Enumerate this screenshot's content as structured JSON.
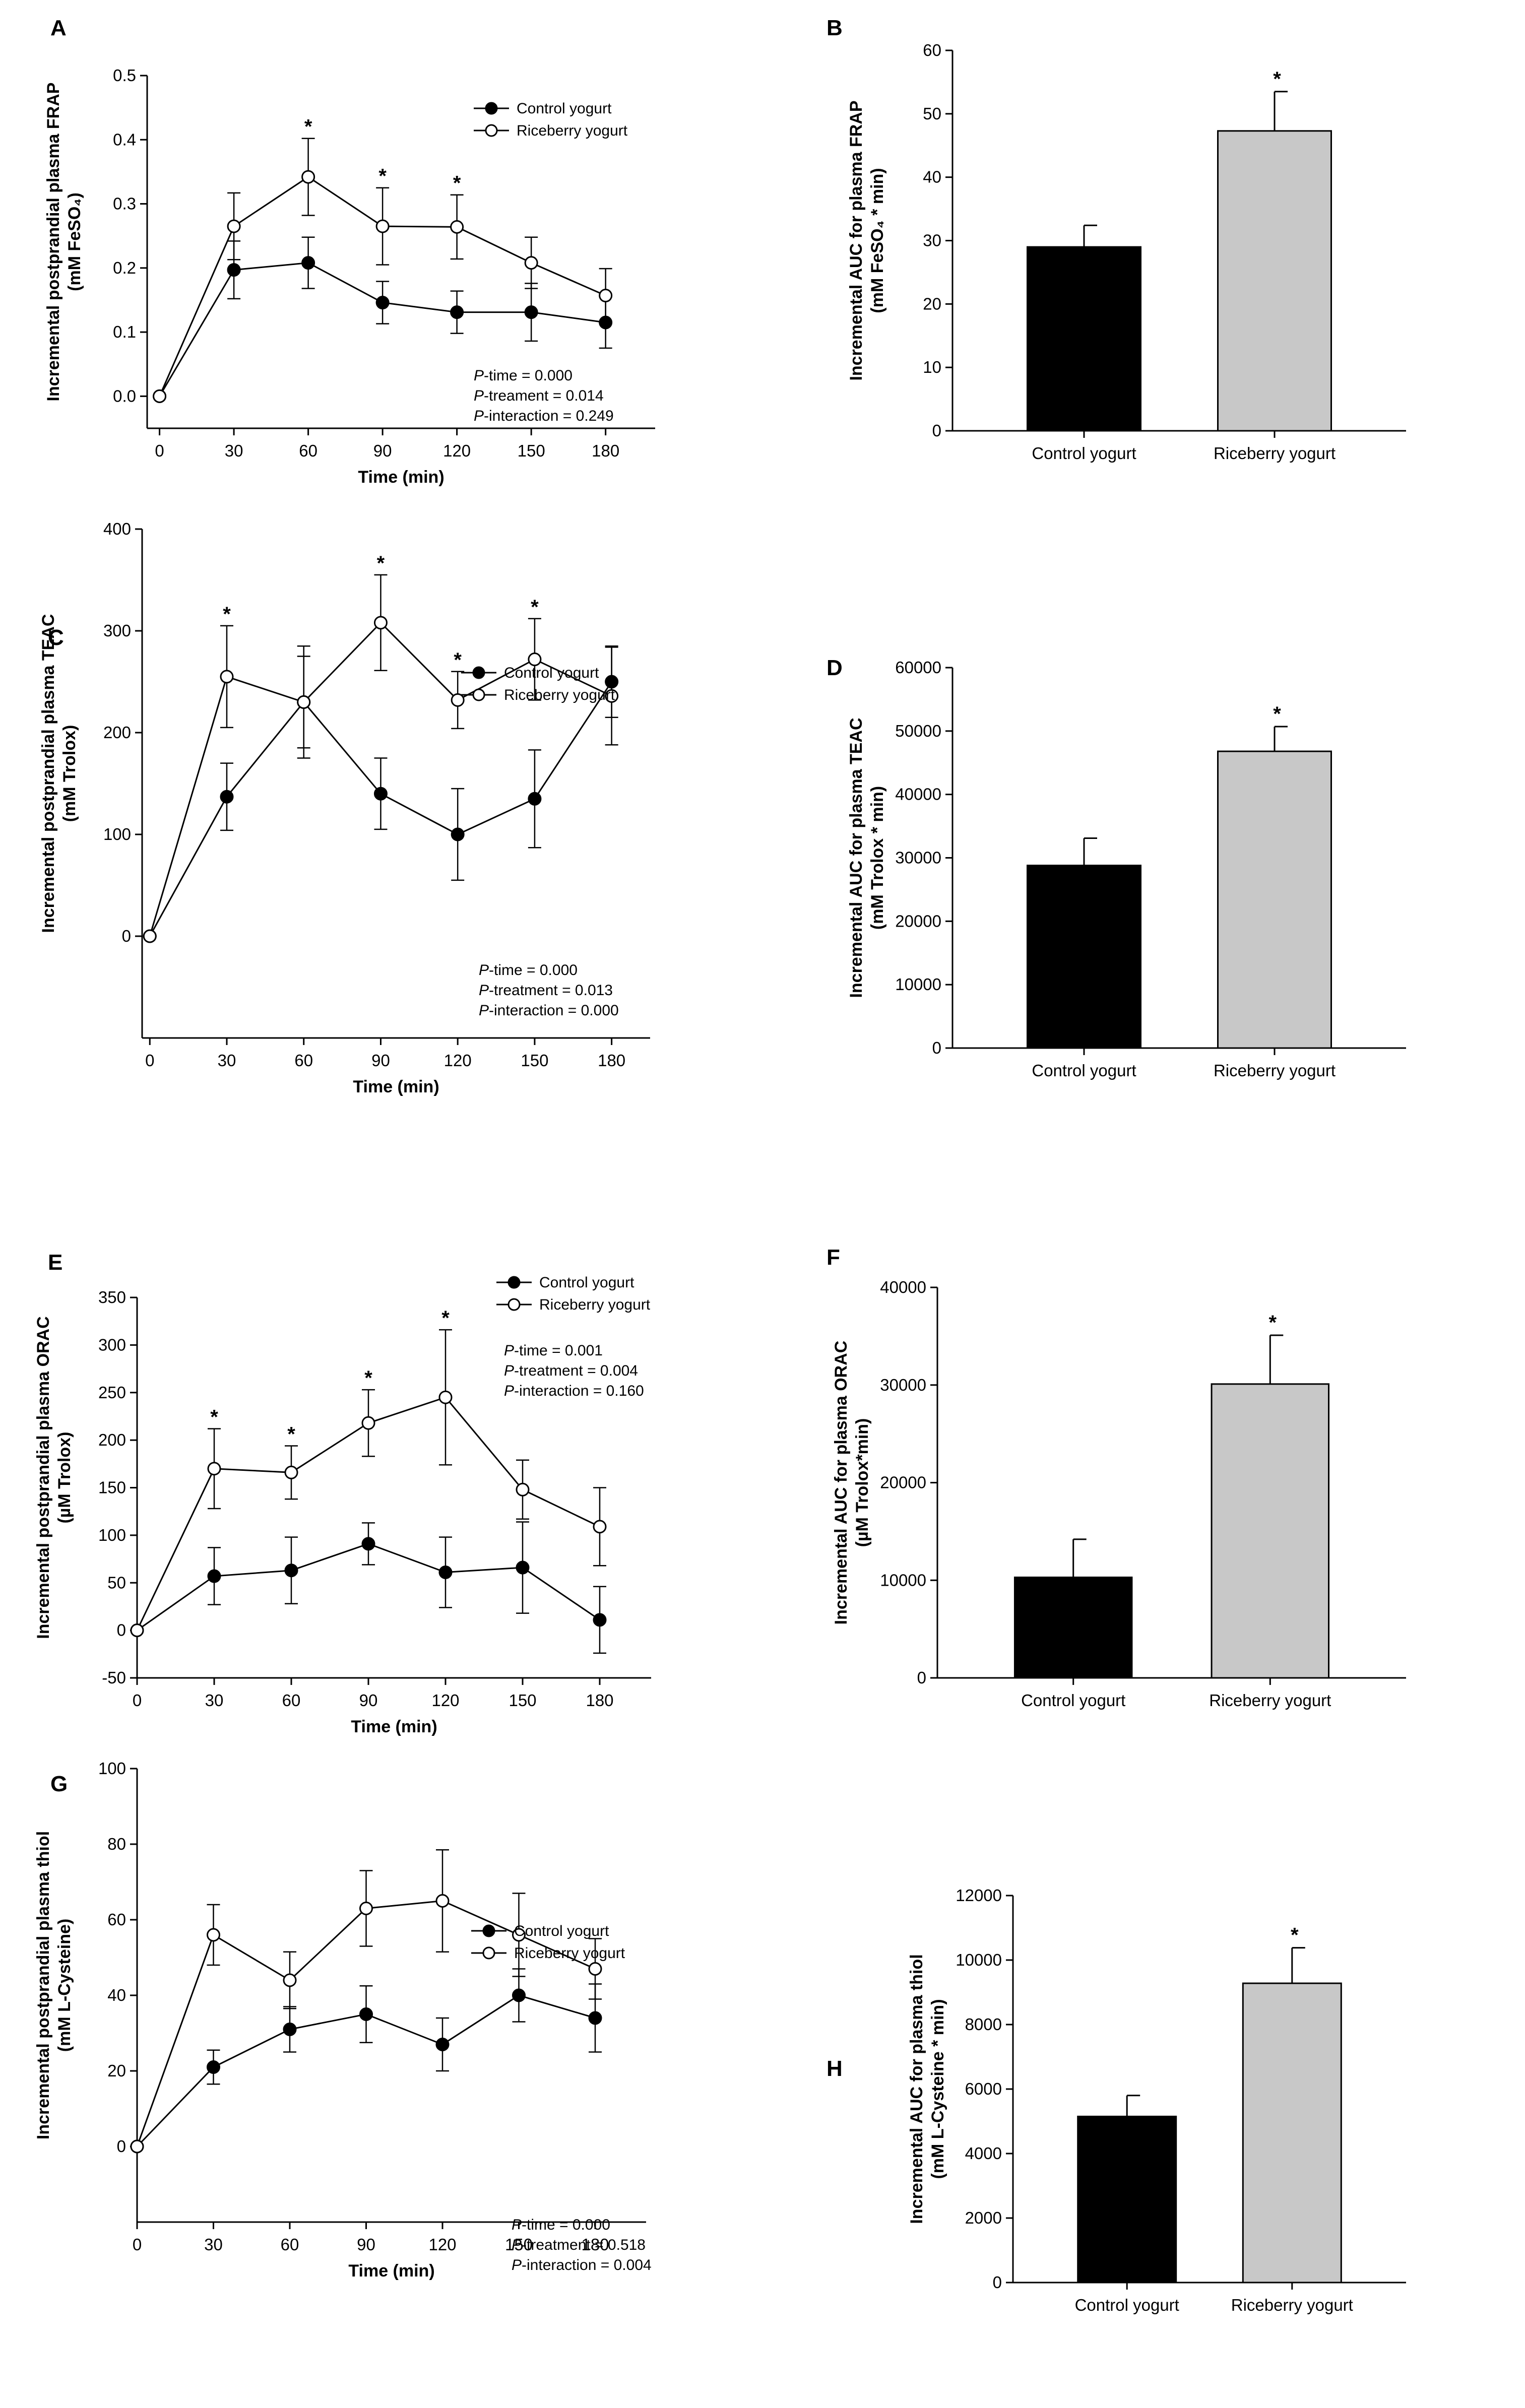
{
  "chart_data": [
    {
      "panel": "A",
      "type": "line",
      "xlabel": "Time (min)",
      "ylabel_lines": [
        "Incremental postprandial plasma FRAP",
        "(mM FeSO₄)"
      ],
      "x": [
        0,
        30,
        60,
        90,
        120,
        150,
        180
      ],
      "xticks": [
        0,
        30,
        60,
        90,
        120,
        150,
        180
      ],
      "xlim": [
        -5,
        200
      ],
      "ylim": [
        -0.05,
        0.5
      ],
      "yticks": [
        0.0,
        0.1,
        0.2,
        0.3,
        0.4,
        0.5
      ],
      "ytick_labels": [
        "0.0",
        "0.1",
        "0.2",
        "0.3",
        "0.4",
        "0.5"
      ],
      "series": [
        {
          "name": "Control yogurt",
          "marker": "filled",
          "values": [
            0,
            0.197,
            0.208,
            0.146,
            0.131,
            0.131,
            0.115
          ],
          "errors": [
            0,
            0.045,
            0.04,
            0.033,
            0.033,
            0.045,
            0.04
          ]
        },
        {
          "name": "Riceberry yogurt",
          "marker": "open",
          "values": [
            0,
            0.265,
            0.342,
            0.265,
            0.264,
            0.208,
            0.157
          ],
          "errors": [
            0,
            0.052,
            0.06,
            0.06,
            0.05,
            0.04,
            0.042
          ]
        }
      ],
      "significance_x": [
        60,
        90,
        120
      ],
      "significance_symbol": "*",
      "stats": [
        {
          "label": "P",
          "text": "-time = 0.000"
        },
        {
          "label": "P",
          "text": "-treament = 0.014"
        },
        {
          "label": "P",
          "text": "-interaction = 0.249"
        }
      ]
    },
    {
      "panel": "B",
      "type": "bar",
      "ylabel_lines": [
        "Incremental AUC for plasma FRAP",
        "(mM FeSO₄ * min)"
      ],
      "categories": [
        "Control yogurt",
        "Riceberry yogurt"
      ],
      "values": [
        29,
        47.3
      ],
      "errors": [
        3.4,
        6.2
      ],
      "colors": [
        "#000000",
        "#c8c8c8"
      ],
      "significant": [
        false,
        true
      ],
      "significance_symbol": "*",
      "ylim": [
        0,
        60
      ],
      "yticks": [
        0,
        10,
        20,
        30,
        40,
        50,
        60
      ],
      "ytick_labels": [
        "0",
        "10",
        "20",
        "30",
        "40",
        "50",
        "60"
      ]
    },
    {
      "panel": "C",
      "type": "line",
      "xlabel": "Time (min)",
      "ylabel_lines": [
        "Incremental postprandial plasma TEAC",
        "(mM Trolox)"
      ],
      "x": [
        0,
        30,
        60,
        90,
        120,
        150,
        180
      ],
      "xticks": [
        0,
        30,
        60,
        90,
        120,
        150,
        180
      ],
      "xlim": [
        -3,
        195
      ],
      "ylim": [
        -100,
        400
      ],
      "yticks": [
        0,
        100,
        200,
        300,
        400
      ],
      "ytick_labels": [
        "0",
        "100",
        "200",
        "300",
        "400"
      ],
      "series": [
        {
          "name": "Control yogurt",
          "marker": "filled",
          "values": [
            0,
            137,
            230,
            140,
            100,
            135,
            250
          ],
          "errors": [
            0,
            33,
            45,
            35,
            45,
            48,
            35
          ]
        },
        {
          "name": "Riceberry yogurt",
          "marker": "open",
          "values": [
            0,
            255,
            230,
            308,
            232,
            272,
            236
          ],
          "errors": [
            0,
            50,
            55,
            47,
            28,
            40,
            48
          ]
        }
      ],
      "significance_x": [
        30,
        90,
        120,
        150
      ],
      "significance_symbol": "*",
      "stats": [
        {
          "label": "P",
          "text": "-time = 0.000"
        },
        {
          "label": "P",
          "text": "-treatment = 0.013"
        },
        {
          "label": "P",
          "text": "-interaction = 0.000"
        }
      ]
    },
    {
      "panel": "D",
      "type": "bar",
      "ylabel_lines": [
        "Incremental AUC for plasma TEAC",
        "(mM Trolox * min)"
      ],
      "categories": [
        "Control yogurt",
        "Riceberry yogurt"
      ],
      "values": [
        28800,
        46800
      ],
      "errors": [
        4300,
        3900
      ],
      "colors": [
        "#000000",
        "#c8c8c8"
      ],
      "significant": [
        false,
        true
      ],
      "significance_symbol": "*",
      "ylim": [
        0,
        60000
      ],
      "yticks": [
        0,
        10000,
        20000,
        30000,
        40000,
        50000,
        60000
      ],
      "ytick_labels": [
        "0",
        "10000",
        "20000",
        "30000",
        "40000",
        "50000",
        "60000"
      ]
    },
    {
      "panel": "E",
      "type": "line",
      "xlabel": "Time (min)",
      "ylabel_lines": [
        "Incremental postprandial plasma ORAC",
        "(µM Trolox)"
      ],
      "x": [
        0,
        30,
        60,
        90,
        120,
        150,
        180
      ],
      "xticks": [
        0,
        30,
        60,
        90,
        120,
        150,
        180
      ],
      "xlim": [
        0,
        200
      ],
      "ylim": [
        -50,
        350
      ],
      "yticks": [
        -50,
        0,
        50,
        100,
        150,
        200,
        250,
        300,
        350
      ],
      "ytick_labels": [
        "-50",
        "0",
        "50",
        "100",
        "150",
        "200",
        "250",
        "300",
        "350"
      ],
      "series": [
        {
          "name": "Control yogurt",
          "marker": "filled",
          "values": [
            0,
            57,
            63,
            91,
            61,
            66,
            11
          ],
          "errors": [
            0,
            30,
            35,
            22,
            37,
            48,
            35
          ]
        },
        {
          "name": "Riceberry yogurt",
          "marker": "open",
          "values": [
            0,
            170,
            166,
            218,
            245,
            148,
            109
          ],
          "errors": [
            0,
            42,
            28,
            35,
            71,
            31,
            41
          ]
        }
      ],
      "significance_x": [
        30,
        60,
        90,
        120
      ],
      "significance_symbol": "*",
      "stats": [
        {
          "label": "P",
          "text": "-time = 0.001"
        },
        {
          "label": "P",
          "text": "-treatment = 0.004"
        },
        {
          "label": "P",
          "text": "-interaction = 0.160"
        }
      ]
    },
    {
      "panel": "F",
      "type": "bar",
      "ylabel_lines": [
        "Incremental AUC for plasma ORAC",
        "(µM Trolox*min)"
      ],
      "categories": [
        "Control yogurt",
        "Riceberry yogurt"
      ],
      "values": [
        10300,
        30100
      ],
      "errors": [
        3900,
        5000
      ],
      "colors": [
        "#000000",
        "#c8c8c8"
      ],
      "significant": [
        false,
        true
      ],
      "significance_symbol": "*",
      "ylim": [
        0,
        40000
      ],
      "yticks": [
        0,
        10000,
        20000,
        30000,
        40000
      ],
      "ytick_labels": [
        "0",
        "10000",
        "20000",
        "30000",
        "40000"
      ]
    },
    {
      "panel": "G",
      "type": "line",
      "xlabel": "Time (min)",
      "ylabel_lines": [
        "Incremental postprandial plasma thiol",
        "(mM L-Cysteine)"
      ],
      "x": [
        0,
        30,
        60,
        90,
        120,
        150,
        180
      ],
      "xticks": [
        0,
        30,
        60,
        90,
        120,
        150,
        180
      ],
      "xlim": [
        0,
        200
      ],
      "ylim": [
        -20,
        100
      ],
      "yticks": [
        0,
        20,
        40,
        60,
        80,
        100
      ],
      "ytick_labels": [
        "0",
        "20",
        "40",
        "60",
        "80",
        "100"
      ],
      "series": [
        {
          "name": "Control yogurt",
          "marker": "filled",
          "values": [
            0,
            21,
            31,
            35,
            27,
            40,
            34
          ],
          "errors": [
            0,
            4.5,
            6,
            7.5,
            7,
            7,
            9
          ]
        },
        {
          "name": "Riceberry yogurt",
          "marker": "open",
          "values": [
            0,
            56,
            44,
            63,
            65,
            56,
            47
          ],
          "errors": [
            0,
            8,
            7.5,
            10,
            13.5,
            11,
            8
          ]
        }
      ],
      "significance_x": [],
      "significance_symbol": "*",
      "stats": [
        {
          "label": "P",
          "text": "-time = 0.000"
        },
        {
          "label": "P",
          "text": "-treatment = 0.518"
        },
        {
          "label": "P",
          "text": "-interaction = 0.004"
        }
      ]
    },
    {
      "panel": "H",
      "type": "bar",
      "ylabel_lines": [
        "Incremental AUC for plasma thiol",
        "(mM L-Cysteine * min)"
      ],
      "categories": [
        "Control yogurt",
        "Riceberry yogurt"
      ],
      "values": [
        5150,
        9280
      ],
      "errors": [
        650,
        1100
      ],
      "colors": [
        "#000000",
        "#c8c8c8"
      ],
      "significant": [
        false,
        true
      ],
      "significance_symbol": "*",
      "ylim": [
        0,
        12000
      ],
      "yticks": [
        0,
        2000,
        4000,
        6000,
        8000,
        10000,
        12000
      ],
      "ytick_labels": [
        "0",
        "2000",
        "4000",
        "6000",
        "8000",
        "10000",
        "12000"
      ]
    }
  ]
}
